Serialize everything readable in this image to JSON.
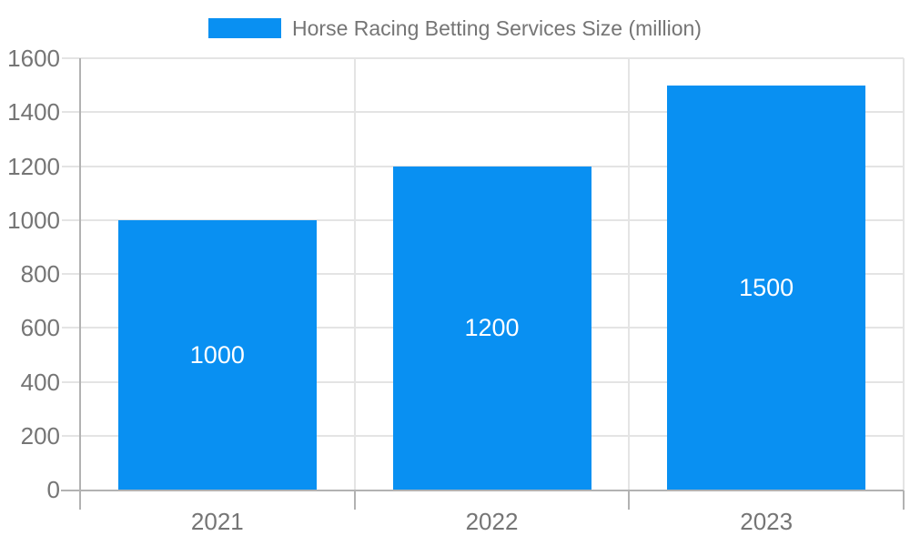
{
  "chart_data": {
    "type": "bar",
    "title": "Horse Racing Betting Services Size (million)",
    "categories": [
      "2021",
      "2022",
      "2023"
    ],
    "series": [
      {
        "name": "Horse Racing Betting Services Size (million)",
        "values": [
          1000,
          1200,
          1500
        ]
      }
    ],
    "bar_value_labels": [
      "1000",
      "1200",
      "1500"
    ],
    "xlabel": "",
    "ylabel": "",
    "ylim": [
      0,
      1600
    ],
    "ytick_step": 200,
    "ytick_labels": [
      "0",
      "200",
      "400",
      "600",
      "800",
      "1000",
      "1200",
      "1400",
      "1600"
    ],
    "grid": true,
    "legend_position": "top",
    "colors": {
      "bar": "#0990f2",
      "bar_label_text": "#ffffff",
      "axis_line": "#b2b2b2",
      "gridline": "#e4e4e4",
      "label_text": "#757575",
      "background": "#ffffff"
    }
  }
}
